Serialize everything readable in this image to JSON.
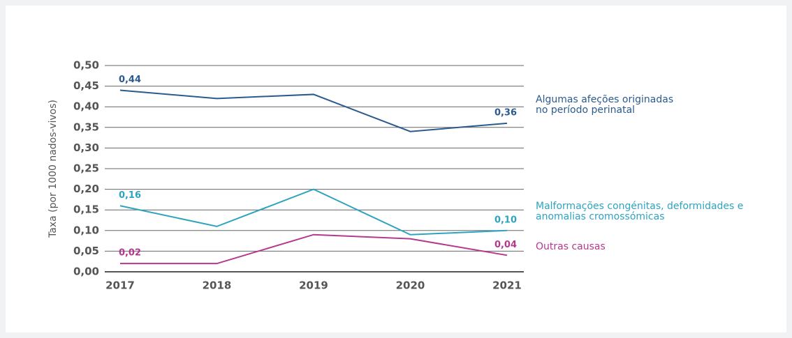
{
  "chart_data": {
    "type": "line",
    "y_label": "Taxa (por 1000 nados-vivos)",
    "categories": [
      "2017",
      "2018",
      "2019",
      "2020",
      "2021"
    ],
    "series": [
      {
        "name": "Algumas afeções originadas no período perinatal",
        "color": "#2b5a8e",
        "values": [
          0.44,
          0.42,
          0.43,
          0.34,
          0.36
        ],
        "value_labels": [
          "0,44",
          null,
          null,
          null,
          "0,36"
        ]
      },
      {
        "name": "Malformações congénitas, deformidades e anomalias cromossómicas",
        "color": "#2ea3bf",
        "values": [
          0.16,
          0.11,
          0.2,
          0.09,
          0.1
        ],
        "value_labels": [
          "0,16",
          null,
          null,
          null,
          "0,10"
        ]
      },
      {
        "name": "Outras causas",
        "color": "#b5388f",
        "values": [
          0.02,
          0.02,
          0.09,
          0.08,
          0.04
        ],
        "value_labels": [
          "0,02",
          null,
          null,
          null,
          "0,04"
        ]
      }
    ],
    "ylim": [
      0,
      0.5
    ],
    "yticks": [
      {
        "value": 0,
        "label": "0,00"
      },
      {
        "value": 0.05,
        "label": "0,05"
      },
      {
        "value": 0.1,
        "label": "0,10"
      },
      {
        "value": 0.15,
        "label": "0,15"
      },
      {
        "value": 0.2,
        "label": "0,20"
      },
      {
        "value": 0.25,
        "label": "0,25"
      },
      {
        "value": 0.3,
        "label": "0,30"
      },
      {
        "value": 0.35,
        "label": "0,35"
      },
      {
        "value": 0.4,
        "label": "0,40"
      },
      {
        "value": 0.45,
        "label": "0,45"
      },
      {
        "value": 0.5,
        "label": "0,50"
      }
    ],
    "grid": true
  }
}
